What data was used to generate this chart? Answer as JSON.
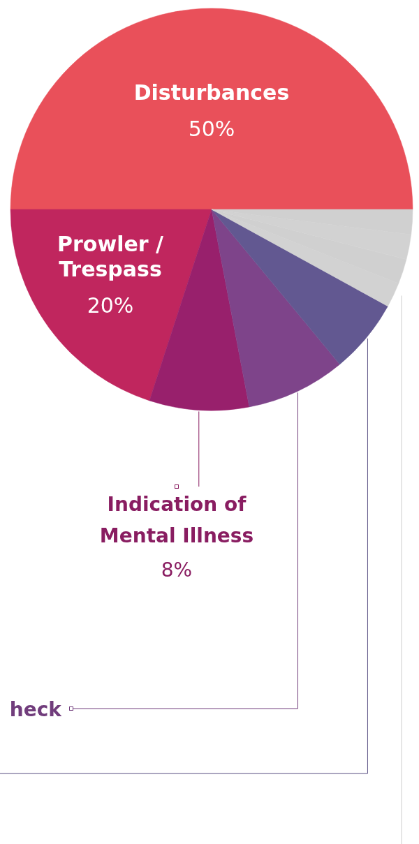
{
  "chart_data": {
    "type": "pie",
    "categories": [
      "Disturbances",
      "Prowler / Trespass",
      "Indication of Mental Illness",
      "heck",
      null,
      null,
      null,
      null,
      null
    ],
    "values": [
      50,
      20,
      8,
      8,
      6,
      2,
      2,
      2,
      2
    ],
    "colors": [
      "#e9505a",
      "#c0265e",
      "#98206c",
      "#7e448a",
      "#625891",
      "#d2d2d2",
      "#d0d0d0",
      "#d2d2d2",
      "#d0d0d0"
    ],
    "value_labels": [
      "50%",
      "20%",
      "8%",
      null,
      null,
      null,
      null,
      null,
      null
    ]
  }
}
